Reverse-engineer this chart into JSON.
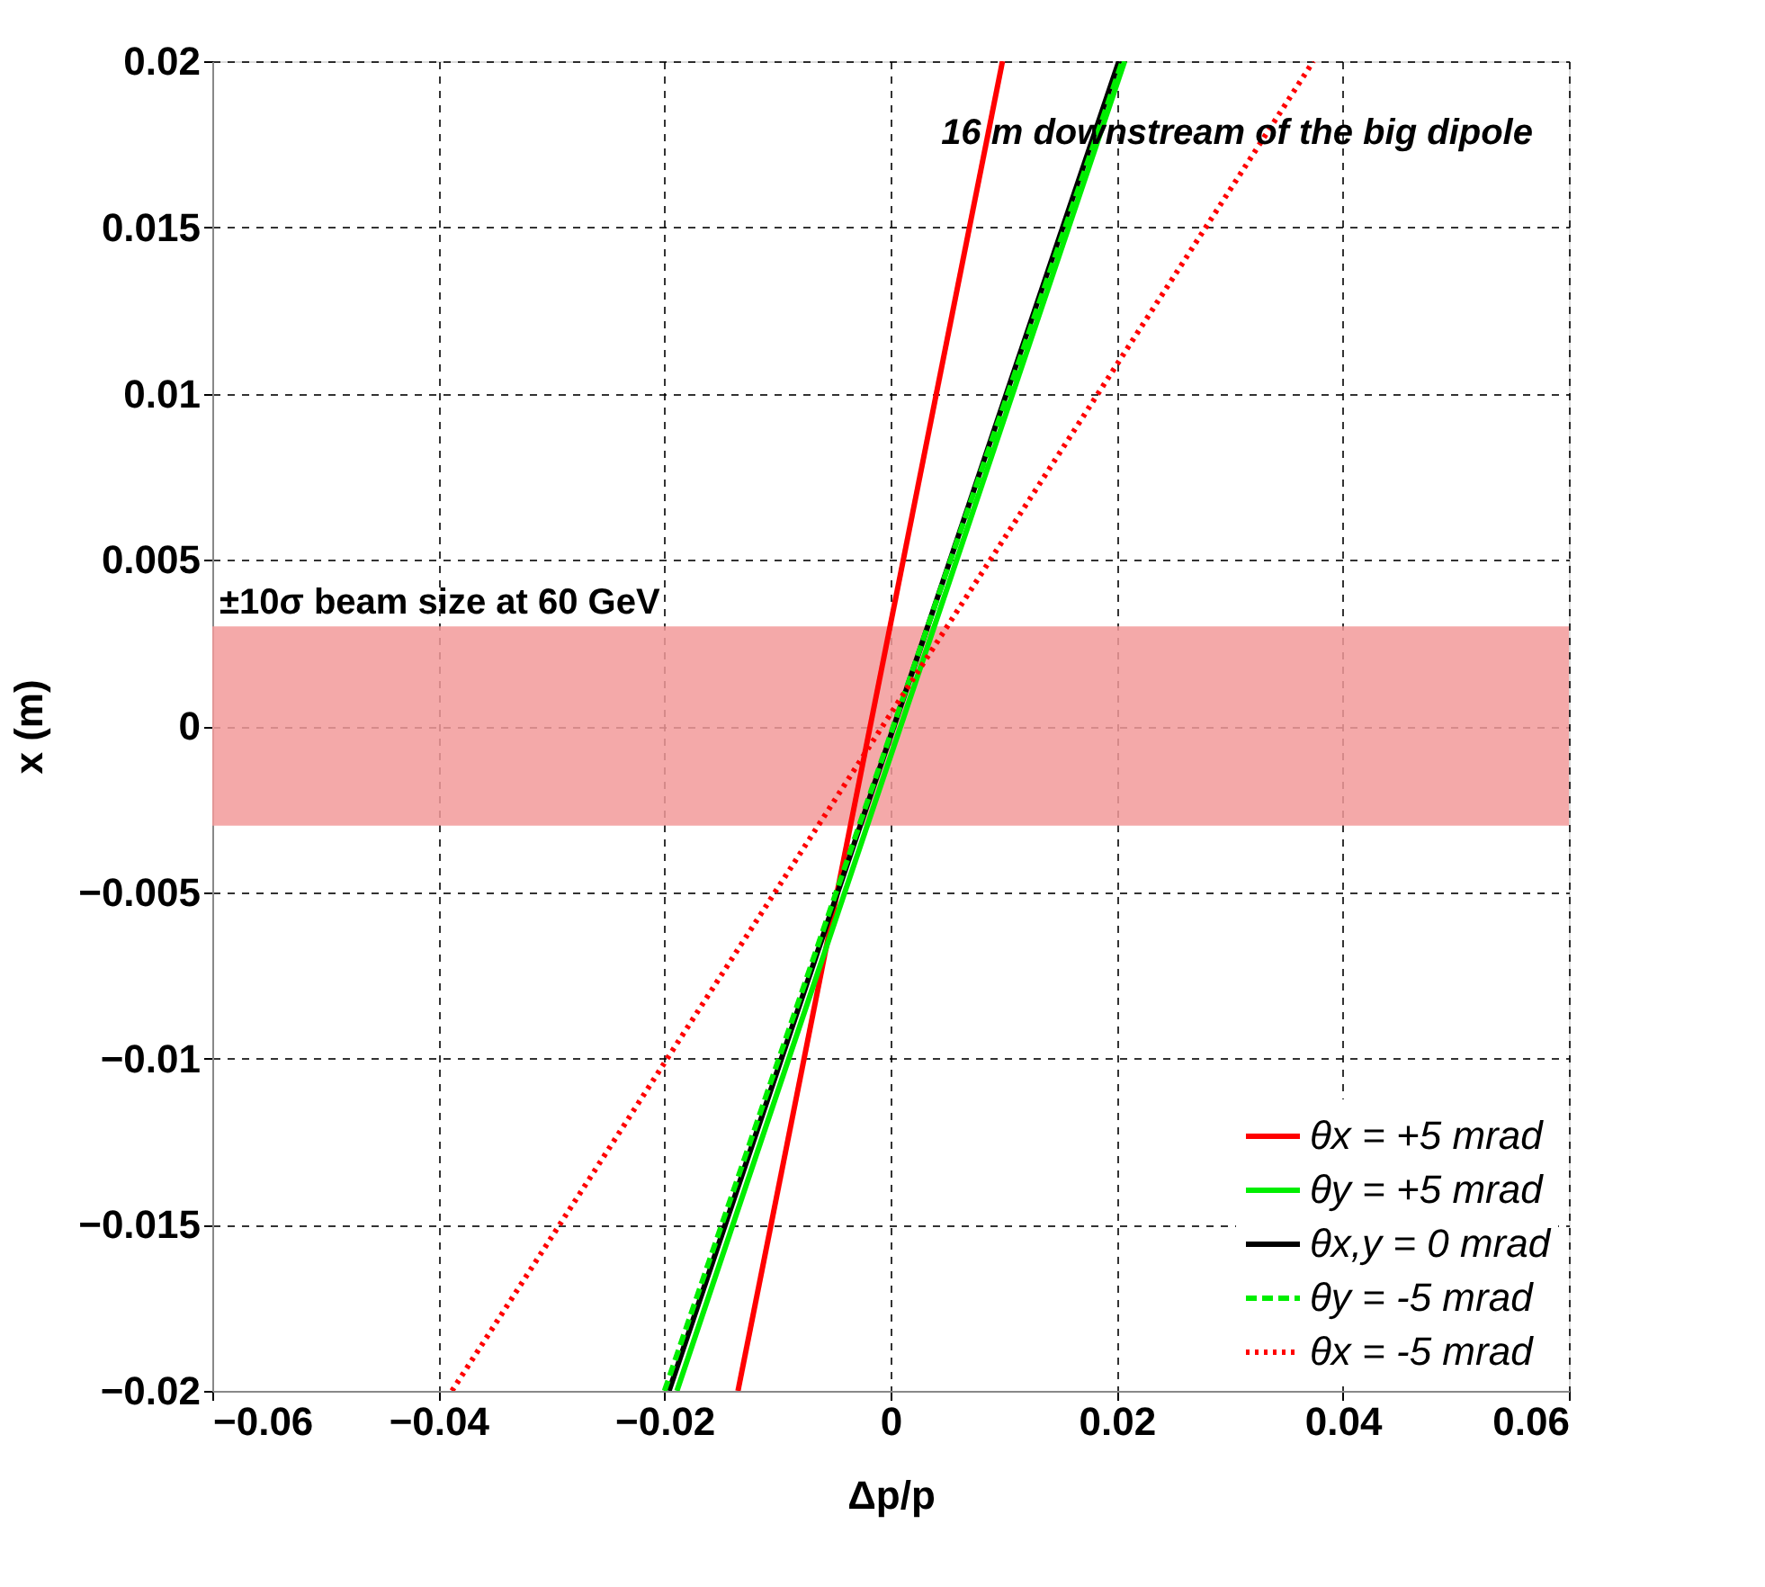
{
  "chart_data": {
    "type": "line",
    "xlabel": "Δp/p",
    "ylabel": "x (m)",
    "annotations": [
      "16 m downstream of the big dipole"
    ],
    "series": [
      {
        "name": "θx = +5 mrad",
        "color": "#ff0000",
        "line_style": "solid",
        "x": [
          -0.0135,
          0.0099
        ],
        "values": [
          -0.02,
          0.02
        ]
      },
      {
        "name": "θy = +5 mrad",
        "color": "#00ee00",
        "line_style": "solid",
        "x": [
          -0.0189,
          0.0207
        ],
        "values": [
          -0.02,
          0.02
        ]
      },
      {
        "name": "θx,y = 0 mrad",
        "color": "#000000",
        "line_style": "solid",
        "x": [
          -0.0196,
          0.0202
        ],
        "values": [
          -0.02,
          0.02
        ]
      },
      {
        "name": "θy = -5 mrad",
        "color": "#00ee00",
        "line_style": "dashed",
        "x": [
          -0.02,
          0.0205
        ],
        "values": [
          -0.02,
          0.02
        ]
      },
      {
        "name": "θx = -5 mrad",
        "color": "#ff0000",
        "line_style": "dotted",
        "x": [
          -0.0388,
          0.0374
        ],
        "values": [
          -0.02,
          0.02
        ]
      }
    ],
    "bands": [
      {
        "axis": "y",
        "from": -0.003,
        "to": 0.003,
        "label": "±10σ beam size at 60 GeV",
        "color": "#f29a9a"
      }
    ],
    "xlim": [
      -0.06,
      0.06
    ],
    "xticks": [
      -0.06,
      -0.04,
      -0.02,
      0,
      0.02,
      0.04,
      0.06
    ],
    "ylim": [
      -0.02,
      0.02
    ],
    "yticks": [
      -0.02,
      -0.015,
      -0.01,
      -0.005,
      0,
      0.005,
      0.01,
      0.015,
      0.02
    ],
    "grid": true,
    "legend": "bottom right",
    "marker": "none"
  }
}
